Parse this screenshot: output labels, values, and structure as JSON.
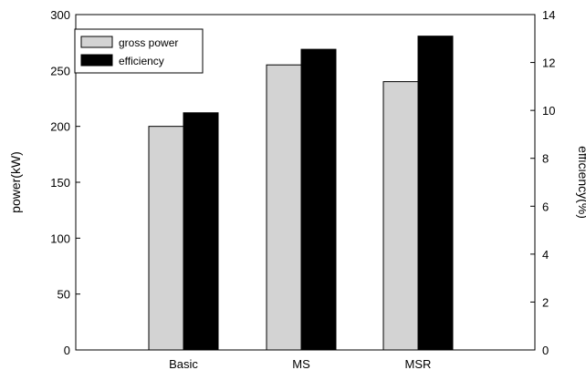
{
  "chart_data": {
    "type": "bar",
    "categories": [
      "Basic",
      "MS",
      "MSR"
    ],
    "series": [
      {
        "name": "gross power",
        "axis": "left",
        "color": "#d3d3d3",
        "values": [
          200,
          255,
          240
        ]
      },
      {
        "name": "efficiency",
        "axis": "right",
        "color": "#000000",
        "values": [
          9.9,
          12.55,
          13.1
        ]
      }
    ],
    "ylabel": "power(kW)",
    "ylabel_right": "efficiency(%)",
    "ylim": [
      0,
      300
    ],
    "ylim_right": [
      0,
      14
    ],
    "yticks": [
      0,
      50,
      100,
      150,
      200,
      250,
      300
    ],
    "yticks_right": [
      0,
      2,
      4,
      6,
      8,
      10,
      12,
      14
    ],
    "legend_position": "top-left",
    "grid": false
  }
}
